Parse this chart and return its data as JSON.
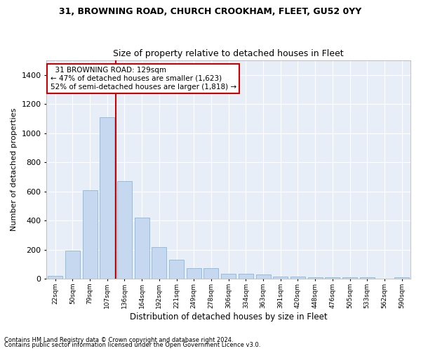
{
  "title1": "31, BROWNING ROAD, CHURCH CROOKHAM, FLEET, GU52 0YY",
  "title2": "Size of property relative to detached houses in Fleet",
  "xlabel": "Distribution of detached houses by size in Fleet",
  "ylabel": "Number of detached properties",
  "bar_color": "#c5d8f0",
  "bar_edge_color": "#7aadd4",
  "background_color": "#e8eef8",
  "grid_color": "#ffffff",
  "categories": [
    "22sqm",
    "50sqm",
    "79sqm",
    "107sqm",
    "136sqm",
    "164sqm",
    "192sqm",
    "221sqm",
    "249sqm",
    "278sqm",
    "306sqm",
    "334sqm",
    "363sqm",
    "391sqm",
    "420sqm",
    "448sqm",
    "476sqm",
    "505sqm",
    "533sqm",
    "562sqm",
    "590sqm"
  ],
  "values": [
    20,
    195,
    610,
    1110,
    670,
    420,
    215,
    130,
    72,
    72,
    35,
    35,
    27,
    15,
    15,
    10,
    10,
    10,
    10,
    0,
    10
  ],
  "ylim": [
    0,
    1500
  ],
  "yticks": [
    0,
    200,
    400,
    600,
    800,
    1000,
    1200,
    1400
  ],
  "property_line_x": 3.5,
  "annotation_text": "  31 BROWNING ROAD: 129sqm  \n← 47% of detached houses are smaller (1,623)\n52% of semi-detached houses are larger (1,818) →",
  "annotation_box_color": "#ffffff",
  "annotation_box_edge_color": "#cc0000",
  "vline_color": "#cc0000",
  "footnote1": "Contains HM Land Registry data © Crown copyright and database right 2024.",
  "footnote2": "Contains public sector information licensed under the Open Government Licence v3.0."
}
